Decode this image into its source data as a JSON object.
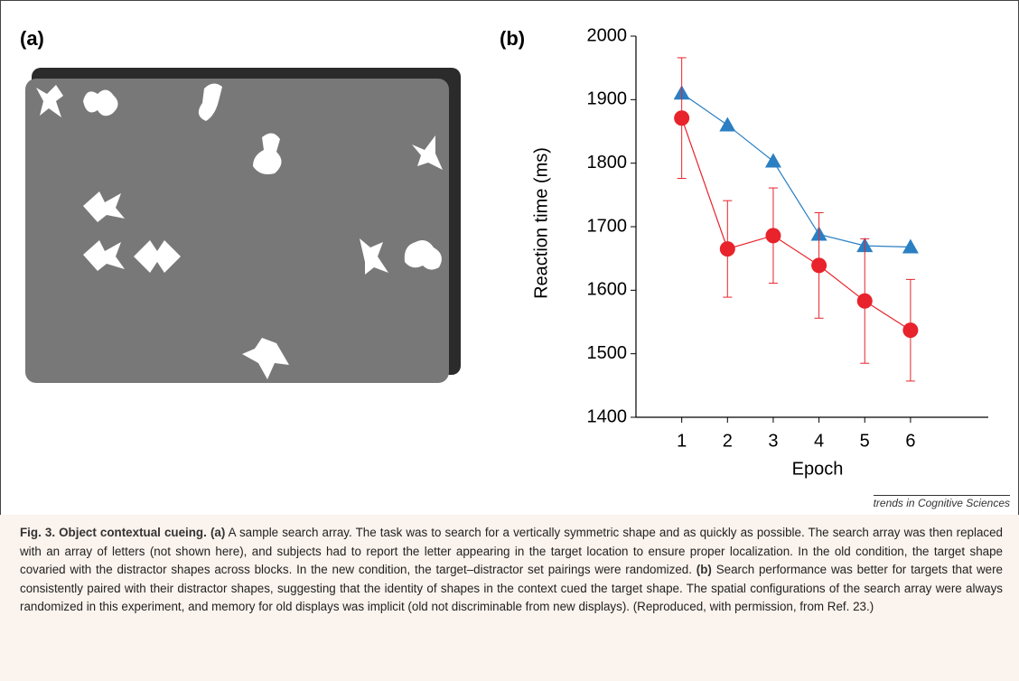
{
  "panel_a": {
    "label": "(a)"
  },
  "source": "trends in Cognitive Sciences",
  "caption": {
    "title": "Fig. 3. Object contextual cueing.",
    "a_label": "(a)",
    "a_text": "A sample search array. The task was to search for a vertically symmetric shape and as quickly as possible. The search array was then replaced with an array of letters (not shown here), and subjects had to report the letter appearing in the target location to ensure proper localization. In the old condition, the target shape covaried with the distractor shapes across blocks. In the new condition, the target–distractor set pairings were randomized.",
    "b_label": "(b)",
    "b_text": "Search performance was better for targets that were consistently paired with their distractor shapes, suggesting that the identity of shapes in the context cued the target shape. The spatial configurations of the search array were always randomized in this experiment, and memory for old displays was implicit (old not discriminable from new displays). (Reproduced, with permission, from Ref. 23.)"
  },
  "chart_data": {
    "type": "line",
    "panel_label": "(b)",
    "x_label": "Epoch",
    "y_label": "Reaction time (ms)",
    "x": [
      1,
      2,
      3,
      4,
      5,
      6
    ],
    "xlim": [
      0,
      7.7
    ],
    "xticks": [
      1,
      2,
      3,
      4,
      5,
      6
    ],
    "ylim": [
      1400,
      2000
    ],
    "yticks": [
      1400,
      1500,
      1600,
      1700,
      1800,
      1900,
      2000
    ],
    "series": [
      {
        "color": "#2b7fc3",
        "marker": "triangle",
        "values": [
          1910,
          1860,
          1803,
          1688,
          1670,
          1668
        ]
      },
      {
        "color": "#e8232b",
        "marker": "circle",
        "values": [
          1871,
          1665,
          1686,
          1639,
          1583,
          1537
        ],
        "errors": [
          95,
          76,
          75,
          83,
          98,
          80
        ]
      }
    ]
  }
}
